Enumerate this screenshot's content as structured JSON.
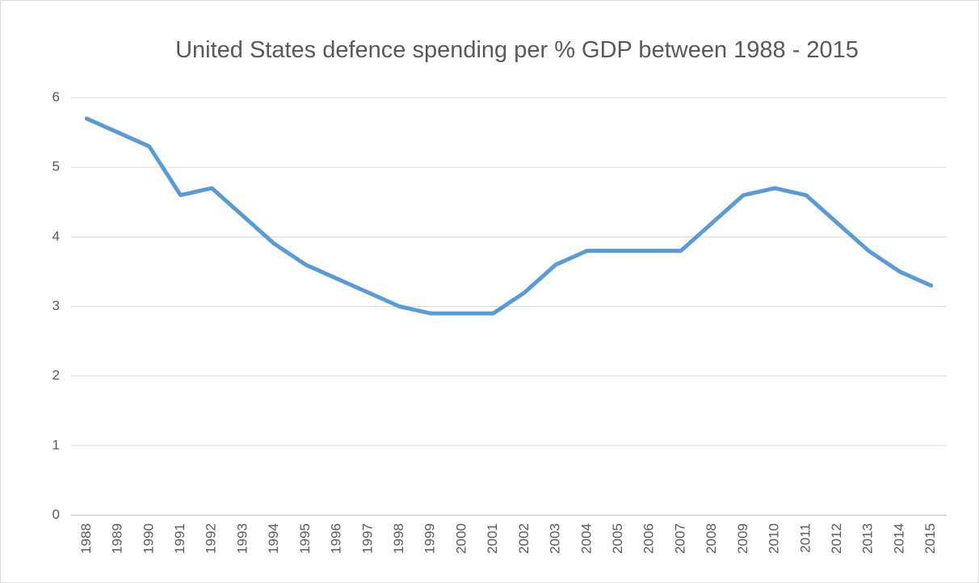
{
  "chart_data": {
    "type": "line",
    "title": "United States defence spending per % GDP between 1988 - 2015",
    "categories": [
      "1988",
      "1989",
      "1990",
      "1991",
      "1992",
      "1993",
      "1994",
      "1995",
      "1996",
      "1997",
      "1998",
      "1999",
      "2000",
      "2001",
      "2002",
      "2003",
      "2004",
      "2005",
      "2006",
      "2007",
      "2008",
      "2009",
      "2010",
      "2011",
      "2012",
      "2013",
      "2014",
      "2015"
    ],
    "series": [
      {
        "name": "Defence spending",
        "color": "#5b9bd5",
        "values": [
          5.7,
          5.5,
          5.3,
          4.6,
          4.7,
          4.3,
          3.9,
          3.6,
          3.4,
          3.2,
          3.0,
          2.9,
          2.9,
          2.9,
          3.2,
          3.6,
          3.8,
          3.8,
          3.8,
          3.8,
          4.2,
          4.6,
          4.7,
          4.6,
          4.2,
          3.8,
          3.5,
          3.3
        ]
      }
    ],
    "ylim": [
      0,
      6
    ],
    "yticks": [
      0,
      1,
      2,
      3,
      4,
      5,
      6
    ],
    "grid": true
  }
}
